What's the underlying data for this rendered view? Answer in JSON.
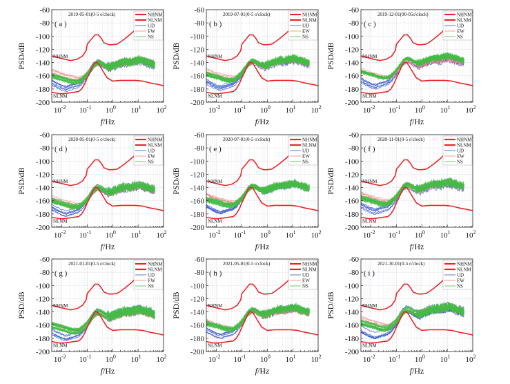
{
  "figure": {
    "ylabel": "PSD/dB",
    "xlabel_italic": "f",
    "xlabel_unit": "/Hz",
    "reference_labels": {
      "high": "NHNM",
      "low": "NLNM"
    },
    "legend_entries": [
      {
        "label": "NHNM",
        "color": "#e8262a"
      },
      {
        "label": "NLNM",
        "color": "#e8262a"
      },
      {
        "label": "UD",
        "color": "#3355cc"
      },
      {
        "label": "EW",
        "color": "#f08080"
      },
      {
        "label": "NS",
        "color": "#44bb44"
      }
    ]
  },
  "chart_data": [
    {
      "type": "line",
      "panel_letter": "( a )",
      "title": "2019-05-01(0-5 o'clock)",
      "xscale": "log",
      "xlim": [
        0.004,
        100
      ],
      "ylim": [
        -200,
        -60
      ],
      "yticks": [
        -200,
        -180,
        -160,
        -140,
        -120,
        -100,
        -80,
        -60
      ],
      "xtick_labels": [
        "10^-2",
        "10^-1",
        "10^0",
        "10^1",
        "10^2"
      ],
      "ylabel": "PSD/dB",
      "xlabel": "f/Hz",
      "series": [
        {
          "name": "NHNM"
        },
        {
          "name": "NLNM"
        },
        {
          "name": "UD"
        },
        {
          "name": "EW"
        },
        {
          "name": "NS"
        }
      ]
    },
    {
      "type": "line",
      "panel_letter": "( b )",
      "title": "2019-07-01(0-5 o'clock)",
      "xscale": "log",
      "xlim": [
        0.004,
        100
      ],
      "ylim": [
        -200,
        -60
      ],
      "yticks": [
        -200,
        -180,
        -160,
        -140,
        -120,
        -100,
        -80,
        -60
      ],
      "xtick_labels": [
        "10^-2",
        "10^-1",
        "10^0",
        "10^1",
        "10^2"
      ],
      "ylabel": "PSD/dB",
      "xlabel": "f/Hz",
      "series": [
        {
          "name": "NHNM"
        },
        {
          "name": "NLNM"
        },
        {
          "name": "UD"
        },
        {
          "name": "EW"
        },
        {
          "name": "NS"
        }
      ]
    },
    {
      "type": "line",
      "panel_letter": "( c )",
      "title": "2019-12-01(00-05o'clock)",
      "xscale": "log",
      "xlim": [
        0.004,
        100
      ],
      "ylim": [
        -200,
        -60
      ],
      "yticks": [
        -200,
        -180,
        -160,
        -140,
        -120,
        -100,
        -80,
        -60
      ],
      "xtick_labels": [
        "10^-2",
        "10^-1",
        "10^0",
        "10^1",
        "10^2"
      ],
      "ylabel": "PSD/dB",
      "xlabel": "f/Hz",
      "series": [
        {
          "name": "NHNM"
        },
        {
          "name": "NLNM"
        },
        {
          "name": "UD"
        },
        {
          "name": "EW"
        },
        {
          "name": "NS"
        }
      ]
    },
    {
      "type": "line",
      "panel_letter": "( d )",
      "title": "2020-05-01(0-5 o'clock)",
      "xscale": "log",
      "xlim": [
        0.004,
        100
      ],
      "ylim": [
        -200,
        -60
      ],
      "yticks": [
        -200,
        -180,
        -160,
        -140,
        -120,
        -100,
        -80,
        -60
      ],
      "xtick_labels": [
        "10^-2",
        "10^-1",
        "10^0",
        "10^1",
        "10^2"
      ],
      "ylabel": "PSD/dB",
      "xlabel": "f/Hz",
      "series": [
        {
          "name": "NHNM"
        },
        {
          "name": "NLNM"
        },
        {
          "name": "UD"
        },
        {
          "name": "EW"
        },
        {
          "name": "NS"
        }
      ]
    },
    {
      "type": "line",
      "panel_letter": "( e )",
      "title": "2020-07-01(0-5 o'clock)",
      "xscale": "log",
      "xlim": [
        0.004,
        100
      ],
      "ylim": [
        -200,
        -60
      ],
      "yticks": [
        -200,
        -180,
        -160,
        -140,
        -120,
        -100,
        -80,
        -60
      ],
      "xtick_labels": [
        "10^-2",
        "10^-1",
        "10^0",
        "10^1",
        "10^2"
      ],
      "ylabel": "PSD/dB",
      "xlabel": "f/Hz",
      "series": [
        {
          "name": "NHNM"
        },
        {
          "name": "NLNM"
        },
        {
          "name": "UD"
        },
        {
          "name": "EW"
        },
        {
          "name": "NS"
        }
      ]
    },
    {
      "type": "line",
      "panel_letter": "( f )",
      "title": "2020-11-01(0-5 o'clock)",
      "xscale": "log",
      "xlim": [
        0.004,
        100
      ],
      "ylim": [
        -200,
        -60
      ],
      "yticks": [
        -200,
        -180,
        -160,
        -140,
        -120,
        -100,
        -80,
        -60
      ],
      "xtick_labels": [
        "10^-2",
        "10^-1",
        "10^0",
        "10^1",
        "10^2"
      ],
      "ylabel": "PSD/dB",
      "xlabel": "f/Hz",
      "series": [
        {
          "name": "NHNM"
        },
        {
          "name": "NLNM"
        },
        {
          "name": "UD"
        },
        {
          "name": "EW"
        },
        {
          "name": "NS"
        }
      ]
    },
    {
      "type": "line",
      "panel_letter": "( g )",
      "title": "2021-01-01(0-5 o'clock)",
      "xscale": "log",
      "xlim": [
        0.004,
        100
      ],
      "ylim": [
        -200,
        -60
      ],
      "yticks": [
        -200,
        -180,
        -160,
        -140,
        -120,
        -100,
        -80,
        -60
      ],
      "xtick_labels": [
        "10^-2",
        "10^-1",
        "10^0",
        "10^1",
        "10^2"
      ],
      "ylabel": "PSD/dB",
      "xlabel": "f/Hz",
      "series": [
        {
          "name": "NHNM"
        },
        {
          "name": "NLNM"
        },
        {
          "name": "UD"
        },
        {
          "name": "EW"
        },
        {
          "name": "NS"
        }
      ]
    },
    {
      "type": "line",
      "panel_letter": "( h )",
      "title": "2021-05-01(0-5 o'clock)",
      "xscale": "log",
      "xlim": [
        0.004,
        100
      ],
      "ylim": [
        -200,
        -60
      ],
      "yticks": [
        -200,
        -180,
        -160,
        -140,
        -120,
        -100,
        -80,
        -60
      ],
      "xtick_labels": [
        "10^-2",
        "10^-1",
        "10^0",
        "10^1",
        "10^2"
      ],
      "ylabel": "PSD/dB",
      "xlabel": "f/Hz",
      "series": [
        {
          "name": "NHNM"
        },
        {
          "name": "NLNM"
        },
        {
          "name": "UD"
        },
        {
          "name": "EW"
        },
        {
          "name": "NS"
        }
      ]
    },
    {
      "type": "line",
      "panel_letter": "( i )",
      "title": "2021-10-01(0-5 o'clock)",
      "xscale": "log",
      "xlim": [
        0.004,
        100
      ],
      "ylim": [
        -200,
        -60
      ],
      "yticks": [
        -200,
        -180,
        -160,
        -140,
        -120,
        -100,
        -80,
        -60
      ],
      "xtick_labels": [
        "10^-2",
        "10^-1",
        "10^0",
        "10^1",
        "10^2"
      ],
      "ylabel": "PSD/dB",
      "xlabel": "f/Hz",
      "series": [
        {
          "name": "NHNM"
        },
        {
          "name": "NLNM"
        },
        {
          "name": "UD"
        },
        {
          "name": "EW"
        },
        {
          "name": "NS"
        }
      ]
    }
  ],
  "reference_models": {
    "NHNM": {
      "x": [
        0.004,
        0.01,
        0.022,
        0.04,
        0.065,
        0.09,
        0.1,
        0.15,
        0.2,
        0.27,
        0.35,
        0.45,
        0.7,
        1.0,
        1.5,
        2,
        3,
        5,
        8,
        12,
        20,
        35,
        50,
        100
      ],
      "y": [
        -130,
        -134,
        -137,
        -135,
        -130,
        -122,
        -112,
        -104,
        -98,
        -98,
        -103,
        -110,
        -113,
        -113,
        -112,
        -109,
        -104,
        -97,
        -90,
        -84,
        -78,
        -72,
        -68,
        -64
      ]
    },
    "NLNM": {
      "x": [
        0.004,
        0.008,
        0.012,
        0.02,
        0.03,
        0.045,
        0.06,
        0.08,
        0.1,
        0.13,
        0.16,
        0.2,
        0.25,
        0.3,
        0.4,
        0.6,
        1,
        2,
        4,
        8,
        15,
        30,
        60,
        100
      ],
      "y": [
        -185,
        -187,
        -187,
        -186,
        -185,
        -184,
        -180,
        -172,
        -163,
        -154,
        -146,
        -140,
        -140,
        -144,
        -152,
        -163,
        -168,
        -167,
        -167,
        -167,
        -168,
        -171,
        -173,
        -175
      ]
    },
    "UD": {
      "x": [
        0.004,
        0.006,
        0.01,
        0.015,
        0.02,
        0.03,
        0.045,
        0.06,
        0.09,
        0.13,
        0.18,
        0.25,
        0.35,
        0.5,
        0.8,
        1.2,
        2,
        3,
        5,
        8,
        12,
        20,
        30,
        45
      ],
      "y": [
        -168,
        -172,
        -176,
        -178,
        -176,
        -174,
        -172,
        -168,
        -160,
        -150,
        -142,
        -138,
        -140,
        -144,
        -146,
        -143,
        -140,
        -138,
        -138,
        -136,
        -135,
        -138,
        -140,
        -142
      ]
    },
    "EW": {
      "x": [
        0.004,
        0.006,
        0.01,
        0.015,
        0.02,
        0.03,
        0.045,
        0.06,
        0.09,
        0.13,
        0.18,
        0.25,
        0.35,
        0.5,
        0.8,
        1.2,
        2,
        3,
        5,
        8,
        12,
        20,
        30,
        45
      ],
      "y": [
        -152,
        -155,
        -158,
        -160,
        -161,
        -163,
        -164,
        -163,
        -158,
        -150,
        -143,
        -139,
        -140,
        -144,
        -146,
        -143,
        -140,
        -138,
        -138,
        -136,
        -135,
        -138,
        -140,
        -142
      ]
    },
    "NS": {
      "x": [
        0.004,
        0.006,
        0.01,
        0.015,
        0.02,
        0.03,
        0.045,
        0.06,
        0.09,
        0.13,
        0.18,
        0.25,
        0.35,
        0.5,
        0.8,
        1.2,
        2,
        3,
        5,
        8,
        12,
        20,
        30,
        45
      ],
      "y": [
        -158,
        -160,
        -162,
        -164,
        -166,
        -167,
        -167,
        -164,
        -158,
        -150,
        -142,
        -138,
        -139,
        -143,
        -145,
        -142,
        -139,
        -137,
        -137,
        -135,
        -134,
        -137,
        -139,
        -141
      ]
    }
  }
}
